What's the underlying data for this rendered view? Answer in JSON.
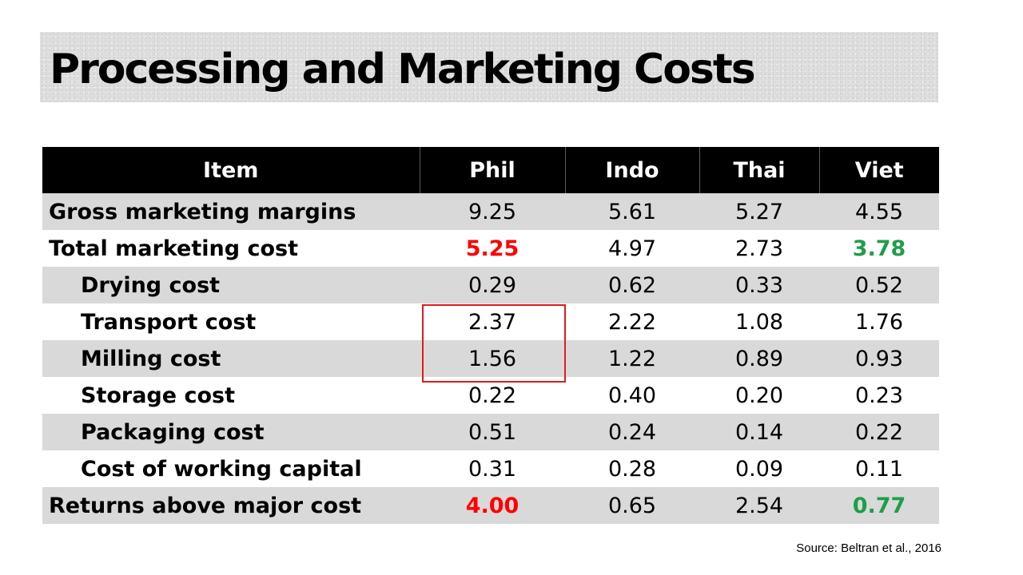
{
  "slide": {
    "title": "Processing and Marketing Costs",
    "source": "Source: Beltran et al., 2016"
  },
  "table": {
    "headers": [
      "Item",
      "Phil",
      "Indo",
      "Thai",
      "Viet"
    ],
    "rows": [
      {
        "label": "Gross marketing margins",
        "values": [
          "9.25",
          "5.61",
          "5.27",
          "4.55"
        ]
      },
      {
        "label": "Total marketing cost",
        "values": [
          "5.25",
          "4.97",
          "2.73",
          "3.78"
        ]
      },
      {
        "label": "Drying cost",
        "values": [
          "0.29",
          "0.62",
          "0.33",
          "0.52"
        ]
      },
      {
        "label": "Transport cost",
        "values": [
          "2.37",
          "2.22",
          "1.08",
          "1.76"
        ]
      },
      {
        "label": "Milling cost",
        "values": [
          "1.56",
          "1.22",
          "0.89",
          "0.93"
        ]
      },
      {
        "label": "Storage cost",
        "values": [
          "0.22",
          "0.40",
          "0.20",
          "0.23"
        ]
      },
      {
        "label": "Packaging cost",
        "values": [
          "0.51",
          "0.24",
          "0.14",
          "0.22"
        ]
      },
      {
        "label": "Cost of working capital",
        "values": [
          "0.31",
          "0.28",
          "0.09",
          "0.11"
        ]
      },
      {
        "label": "Returns above major cost",
        "values": [
          "4.00",
          "0.65",
          "2.54",
          "0.77"
        ]
      }
    ]
  },
  "colors": {
    "header_bg": "#000000",
    "row_shade": "#d9d9d9",
    "highlight_red": "#ff0000",
    "highlight_green": "#1e9e4a",
    "box_outline": "#e01b1b"
  }
}
